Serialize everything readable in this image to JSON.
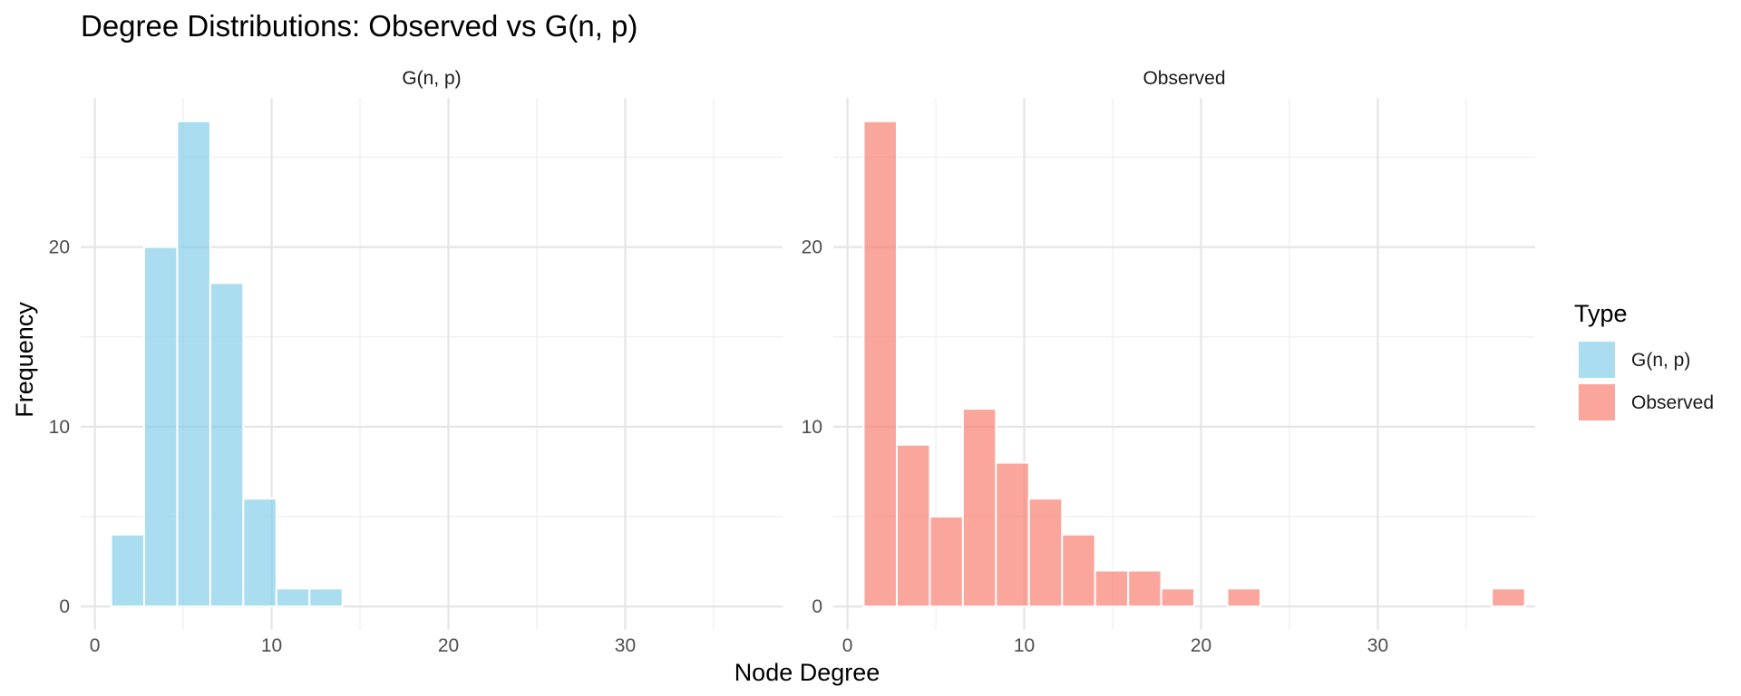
{
  "chart_data": {
    "type": "bar",
    "title": "Degree Distributions: Observed vs G(n, p)",
    "xlabel": "Node Degree",
    "ylabel": "Frequency",
    "xlim": [
      -0.8,
      38.9
    ],
    "ylim": [
      -1.3,
      28.3
    ],
    "x_ticks": [
      0,
      10,
      20,
      30
    ],
    "y_ticks": [
      0,
      10,
      20
    ],
    "bin_width": 1.87,
    "grid": true,
    "legend": {
      "title": "Type",
      "position": "right",
      "entries": [
        {
          "label": "G(n, p)",
          "color": "#87ceeb"
        },
        {
          "label": "Observed",
          "color": "#fa8072"
        }
      ]
    },
    "facets": [
      {
        "label": "G(n, p)",
        "color": "#87ceeb",
        "bins": [
          {
            "x0": 0.92,
            "count": 4
          },
          {
            "x0": 2.79,
            "count": 20
          },
          {
            "x0": 4.66,
            "count": 27
          },
          {
            "x0": 6.53,
            "count": 18
          },
          {
            "x0": 8.4,
            "count": 6
          },
          {
            "x0": 10.27,
            "count": 1
          },
          {
            "x0": 12.14,
            "count": 1
          },
          {
            "x0": 14.01,
            "count": 0
          },
          {
            "x0": 15.88,
            "count": 0
          },
          {
            "x0": 17.75,
            "count": 0
          },
          {
            "x0": 19.62,
            "count": 0
          },
          {
            "x0": 21.49,
            "count": 0
          },
          {
            "x0": 23.36,
            "count": 0
          },
          {
            "x0": 25.23,
            "count": 0
          },
          {
            "x0": 27.1,
            "count": 0
          },
          {
            "x0": 28.97,
            "count": 0
          },
          {
            "x0": 30.84,
            "count": 0
          },
          {
            "x0": 32.71,
            "count": 0
          },
          {
            "x0": 34.58,
            "count": 0
          },
          {
            "x0": 36.45,
            "count": 0
          }
        ]
      },
      {
        "label": "Observed",
        "color": "#fa8072",
        "bins": [
          {
            "x0": 0.92,
            "count": 27
          },
          {
            "x0": 2.79,
            "count": 9
          },
          {
            "x0": 4.66,
            "count": 5
          },
          {
            "x0": 6.53,
            "count": 11
          },
          {
            "x0": 8.4,
            "count": 8
          },
          {
            "x0": 10.27,
            "count": 6
          },
          {
            "x0": 12.14,
            "count": 4
          },
          {
            "x0": 14.01,
            "count": 2
          },
          {
            "x0": 15.88,
            "count": 2
          },
          {
            "x0": 17.75,
            "count": 1
          },
          {
            "x0": 19.62,
            "count": 0
          },
          {
            "x0": 21.49,
            "count": 1
          },
          {
            "x0": 23.36,
            "count": 0
          },
          {
            "x0": 25.23,
            "count": 0
          },
          {
            "x0": 27.1,
            "count": 0
          },
          {
            "x0": 28.97,
            "count": 0
          },
          {
            "x0": 30.84,
            "count": 0
          },
          {
            "x0": 32.71,
            "count": 0
          },
          {
            "x0": 34.58,
            "count": 0
          },
          {
            "x0": 36.45,
            "count": 1
          }
        ]
      }
    ]
  }
}
